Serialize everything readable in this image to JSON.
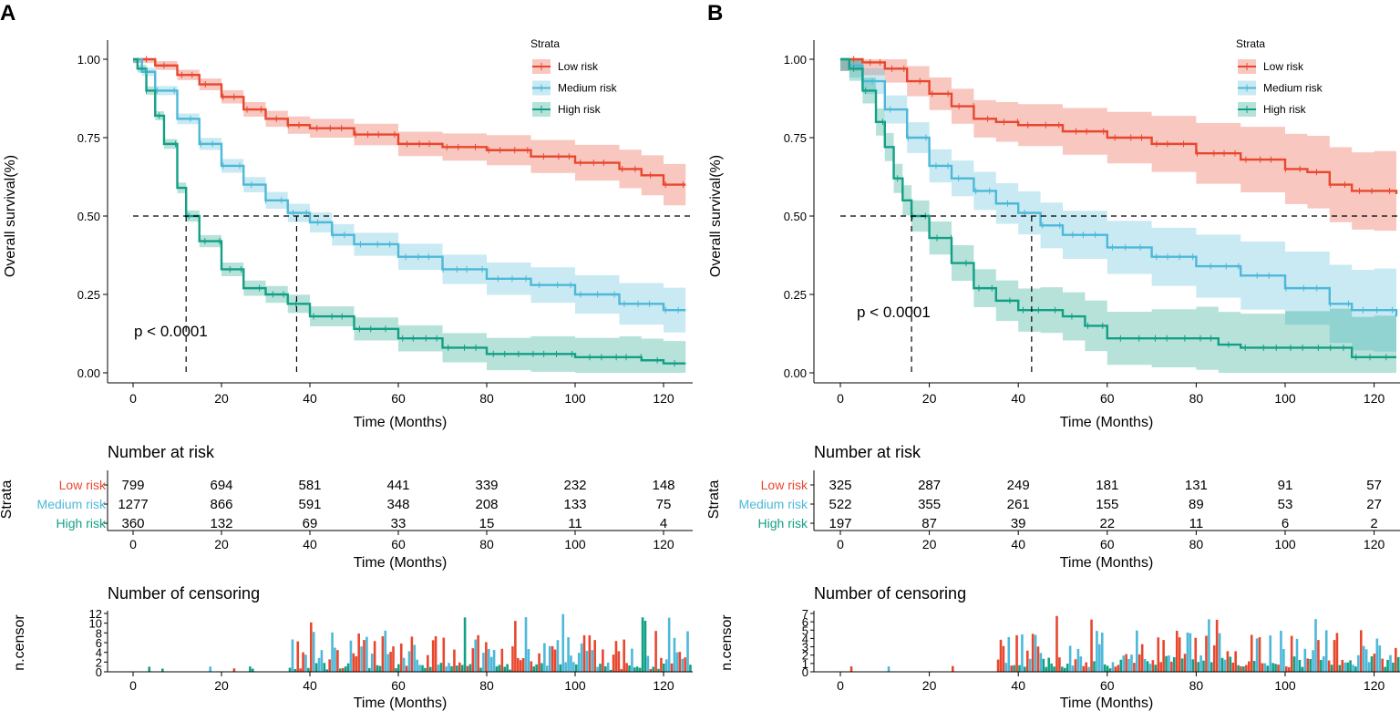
{
  "colors": {
    "low": "#E8472E",
    "medium": "#4DB8D8",
    "high": "#12A085",
    "axis": "#000000"
  },
  "panels": [
    {
      "label": "A",
      "km": {
        "ylabel": "Overall survival(%)",
        "xlabel": "Time (Months)",
        "yticks": [
          "1.00",
          "0.75",
          "0.50",
          "0.25",
          "0.00"
        ],
        "xticks": [
          "0",
          "20",
          "40",
          "60",
          "80",
          "100",
          "120"
        ],
        "pvalue": "p < 0.0001",
        "legend_title": "Strata",
        "legend": [
          "Low risk",
          "Medium risk",
          "High risk"
        ]
      },
      "risk": {
        "title": "Number at risk",
        "ylabel": "Strata",
        "xlabel": "Time (Months)",
        "xticks": [
          "0",
          "20",
          "40",
          "60",
          "80",
          "100",
          "120"
        ],
        "groups": [
          "Low risk",
          "Medium risk",
          "High risk"
        ],
        "rows": [
          [
            "799",
            "694",
            "581",
            "441",
            "339",
            "232",
            "148"
          ],
          [
            "1277",
            "866",
            "591",
            "348",
            "208",
            "133",
            "75"
          ],
          [
            "360",
            "132",
            "69",
            "33",
            "15",
            "11",
            "4"
          ]
        ]
      },
      "censor": {
        "title": "Number of censoring",
        "ylabel": "n.censor",
        "xlabel": "Time (Months)",
        "xticks": [
          "0",
          "20",
          "40",
          "60",
          "80",
          "100",
          "120"
        ],
        "yticks": [
          "0",
          "2",
          "4",
          "6",
          "8",
          "10",
          "12"
        ]
      }
    },
    {
      "label": "B",
      "km": {
        "ylabel": "Overall survival(%)",
        "xlabel": "Time (Months)",
        "yticks": [
          "1.00",
          "0.75",
          "0.50",
          "0.25",
          "0.00"
        ],
        "xticks": [
          "0",
          "20",
          "40",
          "60",
          "80",
          "100",
          "120"
        ],
        "pvalue": "p < 0.0001",
        "legend_title": "Strata",
        "legend": [
          "Low risk",
          "Medium risk",
          "High risk"
        ]
      },
      "risk": {
        "title": "Number at risk",
        "ylabel": "Strata",
        "xlabel": "Time (Months)",
        "xticks": [
          "0",
          "20",
          "40",
          "60",
          "80",
          "100",
          "120"
        ],
        "groups": [
          "Low risk",
          "Medium risk",
          "High risk"
        ],
        "rows": [
          [
            "325",
            "287",
            "249",
            "181",
            "131",
            "91",
            "57"
          ],
          [
            "522",
            "355",
            "261",
            "155",
            "89",
            "53",
            "27"
          ],
          [
            "197",
            "87",
            "39",
            "22",
            "11",
            "6",
            "2"
          ]
        ]
      },
      "censor": {
        "title": "Number of censoring",
        "ylabel": "n.censor",
        "xlabel": "Time (Months)",
        "xticks": [
          "0",
          "20",
          "40",
          "60",
          "80",
          "100",
          "120"
        ],
        "yticks": [
          "0",
          "1",
          "2",
          "3",
          "4",
          "5",
          "6",
          "7"
        ]
      }
    }
  ],
  "chart_data": [
    {
      "type": "line",
      "title": "A",
      "xlabel": "Time (Months)",
      "ylabel": "Overall survival(%)",
      "xlim": [
        0,
        125
      ],
      "ylim": [
        0,
        1
      ],
      "median_line": 0.5,
      "medians": [
        12,
        37
      ],
      "annotation": "p < 0.0001",
      "series": [
        {
          "name": "Low risk",
          "x": [
            0,
            5,
            10,
            15,
            20,
            25,
            30,
            35,
            40,
            50,
            60,
            70,
            80,
            90,
            100,
            110,
            115,
            120,
            125
          ],
          "y": [
            1.0,
            0.98,
            0.95,
            0.92,
            0.88,
            0.84,
            0.81,
            0.79,
            0.78,
            0.76,
            0.73,
            0.72,
            0.71,
            0.69,
            0.67,
            0.65,
            0.63,
            0.6,
            0.6
          ]
        },
        {
          "name": "Medium risk",
          "x": [
            0,
            2,
            5,
            10,
            15,
            20,
            25,
            30,
            35,
            40,
            45,
            50,
            60,
            70,
            80,
            90,
            100,
            110,
            120,
            125
          ],
          "y": [
            1.0,
            0.96,
            0.9,
            0.81,
            0.73,
            0.66,
            0.6,
            0.55,
            0.51,
            0.48,
            0.44,
            0.41,
            0.37,
            0.33,
            0.3,
            0.28,
            0.25,
            0.22,
            0.2,
            0.2
          ]
        },
        {
          "name": "High risk",
          "x": [
            0,
            1,
            3,
            5,
            7,
            10,
            12,
            15,
            20,
            25,
            30,
            35,
            40,
            50,
            60,
            70,
            80,
            90,
            100,
            110,
            115,
            120,
            125
          ],
          "y": [
            1.0,
            0.97,
            0.9,
            0.82,
            0.73,
            0.59,
            0.5,
            0.42,
            0.33,
            0.27,
            0.25,
            0.22,
            0.18,
            0.14,
            0.11,
            0.08,
            0.06,
            0.06,
            0.05,
            0.05,
            0.04,
            0.03,
            0.03
          ]
        }
      ],
      "legend_title": "Strata"
    },
    {
      "type": "line",
      "title": "B",
      "xlabel": "Time (Months)",
      "ylabel": "Overall survival(%)",
      "xlim": [
        0,
        125
      ],
      "ylim": [
        0,
        1
      ],
      "median_line": 0.5,
      "medians": [
        16,
        43
      ],
      "annotation": "p < 0.0001",
      "series": [
        {
          "name": "Low risk",
          "x": [
            0,
            5,
            10,
            15,
            20,
            25,
            30,
            35,
            40,
            50,
            60,
            70,
            80,
            90,
            100,
            105,
            110,
            115,
            120,
            125
          ],
          "y": [
            1.0,
            0.99,
            0.97,
            0.93,
            0.89,
            0.85,
            0.81,
            0.8,
            0.79,
            0.77,
            0.75,
            0.73,
            0.7,
            0.68,
            0.65,
            0.64,
            0.6,
            0.58,
            0.58,
            0.57
          ]
        },
        {
          "name": "Medium risk",
          "x": [
            0,
            2,
            5,
            10,
            15,
            20,
            25,
            30,
            35,
            40,
            45,
            50,
            60,
            70,
            80,
            90,
            100,
            110,
            115,
            120,
            125
          ],
          "y": [
            1.0,
            0.98,
            0.93,
            0.84,
            0.75,
            0.66,
            0.62,
            0.58,
            0.54,
            0.51,
            0.47,
            0.44,
            0.4,
            0.37,
            0.34,
            0.31,
            0.27,
            0.22,
            0.2,
            0.2,
            0.18
          ]
        },
        {
          "name": "High risk",
          "x": [
            0,
            2,
            5,
            8,
            10,
            12,
            14,
            16,
            20,
            25,
            30,
            35,
            40,
            45,
            50,
            55,
            60,
            70,
            80,
            85,
            90,
            100,
            110,
            115,
            120,
            125
          ],
          "y": [
            1.0,
            0.97,
            0.9,
            0.8,
            0.72,
            0.62,
            0.55,
            0.5,
            0.43,
            0.35,
            0.27,
            0.23,
            0.2,
            0.2,
            0.18,
            0.15,
            0.11,
            0.11,
            0.11,
            0.09,
            0.08,
            0.08,
            0.08,
            0.05,
            0.05,
            0.05
          ]
        }
      ],
      "legend_title": "Strata"
    }
  ]
}
